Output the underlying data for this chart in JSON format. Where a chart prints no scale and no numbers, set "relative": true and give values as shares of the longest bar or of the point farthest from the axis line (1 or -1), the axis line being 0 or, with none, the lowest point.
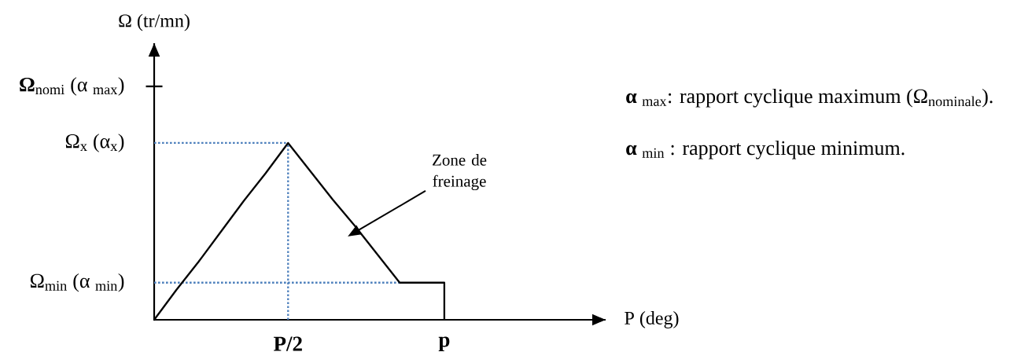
{
  "chart_data": {
    "type": "line",
    "relative": true,
    "line_style": "solid",
    "marker": "none",
    "categories": [
      null,
      null,
      null,
      null,
      null,
      null,
      "P/2",
      null,
      null,
      null,
      null,
      null,
      null,
      "p"
    ],
    "series": [
      {
        "color": "#000000",
        "values": [
          0,
          0.17,
          0.33,
          0.5,
          0.67,
          0.83,
          1,
          0.84,
          0.68,
          0.53,
          0.37,
          0.21,
          0.21,
          0.21
        ]
      }
    ],
    "ref_lines": [
      {
        "axis": "y",
        "value": 1.32,
        "label": "**Ω**$_{nomi}$ (α $_{max}$)",
        "color": "#000000"
      },
      {
        "axis": "y",
        "value": 1,
        "label": "Ω$_{x}$ (α$_{x}$)",
        "color": "#4f81bd",
        "line_style": "dotted"
      },
      {
        "axis": "y",
        "value": 0.21,
        "label": "Ω$_{min}$ (α $_{min}$)",
        "color": "#4f81bd",
        "line_style": "dotted"
      },
      {
        "axis": "x",
        "value": "P/2",
        "color": "#4f81bd",
        "line_style": "dotted"
      },
      {
        "axis": "x",
        "value": "p",
        "color": "#000000"
      }
    ],
    "annotations": [
      "Zone de freinage",
      "**α** $_{max}$: rapport cyclique maximum (Ω$_{nominale}$).",
      "**α** $_{min}$ : rapport cyclique minimum.",
      "Ω (tr/mn)",
      "P (deg)"
    ]
  }
}
